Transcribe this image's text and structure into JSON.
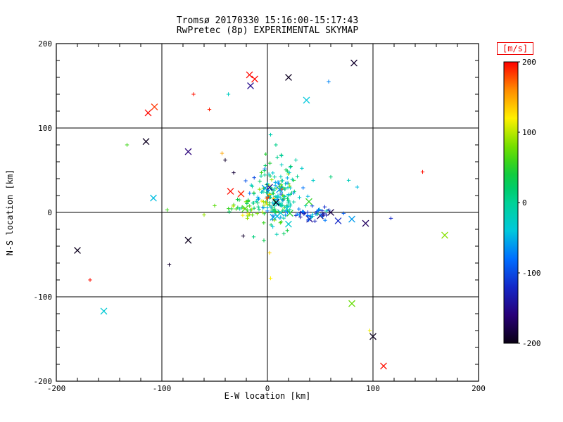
{
  "chart_data": {
    "type": "scatter",
    "title_line1": "Tromsø 20170330 15:16:00-15:17:43",
    "title_line2": "RwPretec (8p) EXPERIMENTAL SKYMAP",
    "xlabel": "E-W location [km]",
    "ylabel": "N-S location [km]",
    "xlim": [
      -200,
      200
    ],
    "ylim": [
      -200,
      200
    ],
    "xticks": [
      -200,
      -100,
      0,
      100,
      200
    ],
    "yticks": [
      -200,
      -100,
      0,
      100,
      200
    ],
    "minor_tick_step": 20,
    "grid": true,
    "grid_lines": [
      -100,
      0,
      100
    ],
    "background": "#ffffff",
    "axis_color": "#000000",
    "colorbar": {
      "label": "[m/s]",
      "min": -200,
      "max": 200,
      "ticks": [
        200,
        100,
        0,
        -100,
        -200
      ],
      "label_box_color": "#ee0000"
    },
    "seed": 7,
    "points_outliers": [
      [
        82,
        177,
        -190,
        "x"
      ],
      [
        -17,
        163,
        198,
        "x"
      ],
      [
        -12,
        158,
        198,
        "x"
      ],
      [
        -16,
        150,
        -150,
        "x"
      ],
      [
        20,
        160,
        -195,
        "x"
      ],
      [
        58,
        155,
        -70,
        "+"
      ],
      [
        37,
        133,
        -40,
        "x"
      ],
      [
        -37,
        140,
        -25,
        "+"
      ],
      [
        -70,
        140,
        195,
        "+"
      ],
      [
        -113,
        118,
        198,
        "x"
      ],
      [
        -107,
        125,
        185,
        "x"
      ],
      [
        -55,
        122,
        192,
        "+"
      ],
      [
        -133,
        80,
        60,
        "+"
      ],
      [
        -115,
        84,
        -195,
        "x"
      ],
      [
        -75,
        72,
        -160,
        "x"
      ],
      [
        -43,
        70,
        150,
        "+"
      ],
      [
        -40,
        62,
        -190,
        "+"
      ],
      [
        -32,
        47,
        -185,
        "+"
      ],
      [
        -35,
        25,
        196,
        "x"
      ],
      [
        -25,
        22,
        190,
        "x"
      ],
      [
        147,
        48,
        196,
        "+"
      ],
      [
        -108,
        17,
        -45,
        "x"
      ],
      [
        -95,
        3,
        60,
        "+"
      ],
      [
        168,
        -27,
        85,
        "x"
      ],
      [
        -75,
        -33,
        -196,
        "x"
      ],
      [
        -180,
        -45,
        -196,
        "x"
      ],
      [
        -93,
        -62,
        -190,
        "+"
      ],
      [
        -168,
        -80,
        196,
        "+"
      ],
      [
        3,
        -78,
        120,
        "+"
      ],
      [
        -155,
        -117,
        -35,
        "x"
      ],
      [
        80,
        -108,
        75,
        "x"
      ],
      [
        97,
        -140,
        115,
        "+"
      ],
      [
        100,
        -147,
        -196,
        "x"
      ],
      [
        110,
        -182,
        196,
        "x"
      ],
      [
        3,
        92,
        -15,
        "+"
      ],
      [
        8,
        80,
        5,
        "+"
      ],
      [
        13,
        68,
        25,
        "+"
      ],
      [
        27,
        62,
        -10,
        "+"
      ],
      [
        77,
        38,
        -20,
        "+"
      ],
      [
        85,
        30,
        -45,
        "+"
      ],
      [
        60,
        42,
        15,
        "+"
      ],
      [
        40,
        -8,
        -150,
        "x"
      ],
      [
        50,
        -4,
        -170,
        "x"
      ],
      [
        60,
        0,
        -180,
        "x"
      ],
      [
        67,
        -10,
        -120,
        "x"
      ],
      [
        80,
        -8,
        -60,
        "x"
      ],
      [
        -60,
        -3,
        90,
        "+"
      ],
      [
        -50,
        8,
        70,
        "+"
      ],
      [
        117,
        -7,
        -120,
        "+"
      ],
      [
        93,
        -13,
        -170,
        "x"
      ],
      [
        2,
        -48,
        130,
        "+"
      ],
      [
        -23,
        -28,
        -190,
        "+"
      ]
    ],
    "points_clusters": [
      {
        "count": 150,
        "cx": 8,
        "cy": 20,
        "sx": 11,
        "sy": 15,
        "vmean": -5,
        "vsd": 45,
        "marker": "+"
      },
      {
        "count": 30,
        "cx": -18,
        "cy": 6,
        "sx": 9,
        "sy": 7,
        "vmean": 55,
        "vsd": 30,
        "marker": "+"
      },
      {
        "count": 45,
        "cx": 42,
        "cy": -2,
        "sx": 11,
        "sy": 4,
        "vmean": -90,
        "vsd": 35,
        "marker": "+"
      },
      {
        "count": 25,
        "cx": 12,
        "cy": 46,
        "sx": 9,
        "sy": 11,
        "vmean": -10,
        "vsd": 35,
        "marker": "+"
      },
      {
        "count": 10,
        "cx": 5,
        "cy": 14,
        "sx": 11,
        "sy": 9,
        "vmean": 130,
        "vsd": 35,
        "marker": "+"
      },
      {
        "count": 12,
        "cx": 10,
        "cy": 8,
        "sx": 16,
        "sy": 10,
        "vmean": -30,
        "vsd": 70,
        "marker": "x"
      },
      {
        "count": 8,
        "cx": 5,
        "cy": -20,
        "sx": 8,
        "sy": 8,
        "vmean": 10,
        "vsd": 40,
        "marker": "+"
      }
    ]
  }
}
